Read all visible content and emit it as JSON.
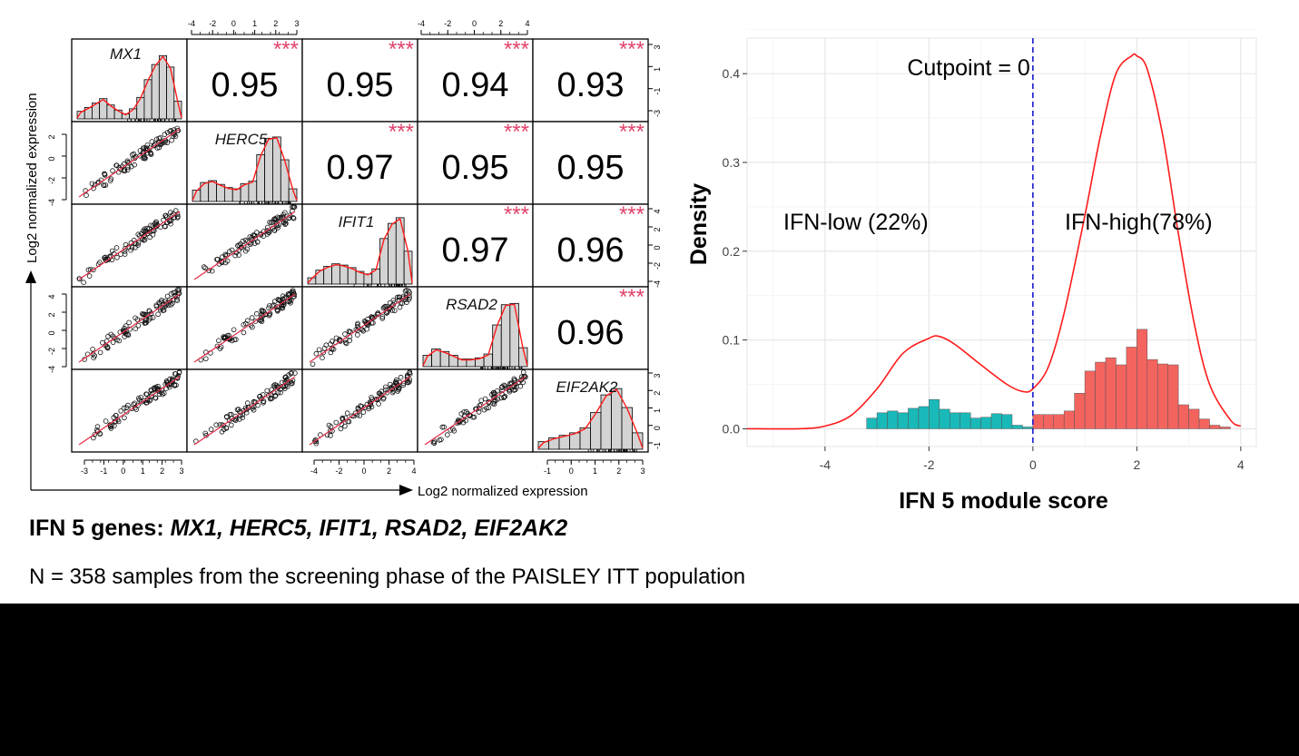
{
  "matrix": {
    "genes": [
      "MX1",
      "HERC5",
      "IFIT1",
      "RSAD2",
      "EIF2AK2"
    ],
    "correlations": [
      {
        "row": 0,
        "col": 1,
        "value": "0.95"
      },
      {
        "row": 0,
        "col": 2,
        "value": "0.95"
      },
      {
        "row": 0,
        "col": 3,
        "value": "0.94"
      },
      {
        "row": 0,
        "col": 4,
        "value": "0.93"
      },
      {
        "row": 1,
        "col": 2,
        "value": "0.97"
      },
      {
        "row": 1,
        "col": 3,
        "value": "0.95"
      },
      {
        "row": 1,
        "col": 4,
        "value": "0.95"
      },
      {
        "row": 2,
        "col": 3,
        "value": "0.97"
      },
      {
        "row": 2,
        "col": 4,
        "value": "0.96"
      },
      {
        "row": 3,
        "col": 4,
        "value": "0.96"
      }
    ],
    "significance": "***",
    "ylabel": "Log2 normalized expression",
    "xlabel": "Log2 normalized expression",
    "axes": {
      "top_col1": [
        "-4",
        "-2",
        "0",
        "1",
        "2",
        "3"
      ],
      "top_col3": [
        "-4",
        "-2",
        "0",
        "2",
        "4"
      ],
      "bottom_col0": [
        "-3",
        "-1",
        "0",
        "1",
        "2",
        "3"
      ],
      "bottom_col2": [
        "-4",
        "-2",
        "0",
        "2",
        "4"
      ],
      "bottom_col4": [
        "-1",
        "0",
        "1",
        "2",
        "3"
      ],
      "left_row1": [
        "2",
        "0",
        "-2",
        "-4"
      ],
      "left_row3": [
        "4",
        "2",
        "0",
        "-2",
        "-4"
      ],
      "right_row0": [
        "3",
        "1",
        "-1",
        "-3"
      ],
      "right_row2": [
        "4",
        "2",
        "0",
        "-2",
        "-4"
      ],
      "right_row4": [
        "3",
        "2",
        "1",
        "0",
        "-1"
      ]
    },
    "histograms": [
      [
        0.12,
        0.18,
        0.25,
        0.32,
        0.22,
        0.14,
        0.08,
        0.16,
        0.34,
        0.62,
        0.86,
        1.0,
        0.82,
        0.28
      ],
      [
        0.18,
        0.3,
        0.33,
        0.27,
        0.22,
        0.2,
        0.28,
        0.32,
        0.74,
        1.0,
        1.02,
        0.66,
        0.2
      ],
      [
        0.1,
        0.22,
        0.28,
        0.32,
        0.3,
        0.26,
        0.2,
        0.16,
        0.24,
        0.72,
        0.96,
        1.05,
        0.52
      ],
      [
        0.18,
        0.28,
        0.24,
        0.18,
        0.12,
        0.12,
        0.14,
        0.2,
        0.66,
        0.98,
        1.0,
        0.3
      ],
      [
        0.12,
        0.18,
        0.22,
        0.26,
        0.34,
        0.58,
        0.86,
        0.96,
        0.66,
        0.26
      ]
    ]
  },
  "chart_data": {
    "type": "area",
    "xlabel": "IFN 5 module score",
    "ylabel": "Density",
    "xlim": [
      -5.5,
      4.3
    ],
    "ylim": [
      -0.02,
      0.44
    ],
    "x_ticks": [
      -4,
      -2,
      0,
      2,
      4
    ],
    "y_ticks": [
      0.0,
      0.1,
      0.2,
      0.3,
      0.4
    ],
    "y_tick_labels": [
      "0.0",
      "0.1",
      "0.2",
      "0.3",
      "0.4"
    ],
    "x_tick_labels": [
      "-4",
      "-2",
      "0",
      "2",
      "4"
    ],
    "cutpoint": 0,
    "grid": true,
    "annotations": {
      "cutpoint": "Cutpoint = 0",
      "low": "IFN-low (22%)",
      "high": "IFN-high(78%)"
    },
    "density_curve": {
      "x": [
        -5.5,
        -4.5,
        -4.0,
        -3.5,
        -3.0,
        -2.5,
        -2.0,
        -1.8,
        -1.5,
        -1.0,
        -0.5,
        -0.2,
        0.0,
        0.3,
        0.6,
        1.0,
        1.3,
        1.6,
        1.9,
        2.0,
        2.2,
        2.5,
        2.8,
        3.1,
        3.4,
        3.8,
        4.0
      ],
      "y": [
        0.0,
        0.0,
        0.003,
        0.015,
        0.045,
        0.085,
        0.102,
        0.104,
        0.095,
        0.072,
        0.05,
        0.042,
        0.045,
        0.07,
        0.13,
        0.24,
        0.33,
        0.4,
        0.42,
        0.42,
        0.405,
        0.33,
        0.22,
        0.12,
        0.05,
        0.01,
        0.003
      ]
    },
    "series": [
      {
        "name": "IFN-low",
        "color": "#1ab9b9",
        "x": [
          -3.1,
          -2.9,
          -2.7,
          -2.5,
          -2.3,
          -2.1,
          -1.9,
          -1.7,
          -1.5,
          -1.3,
          -1.1,
          -0.9,
          -0.7,
          -0.5,
          -0.3,
          -0.1
        ],
        "y": [
          0.012,
          0.018,
          0.02,
          0.018,
          0.023,
          0.025,
          0.033,
          0.022,
          0.018,
          0.018,
          0.012,
          0.013,
          0.017,
          0.016,
          0.004,
          0.002
        ]
      },
      {
        "name": "IFN-high",
        "color": "#f4645f",
        "x": [
          0.1,
          0.3,
          0.5,
          0.7,
          0.9,
          1.1,
          1.3,
          1.5,
          1.7,
          1.9,
          2.1,
          2.3,
          2.5,
          2.7,
          2.9,
          3.1,
          3.3,
          3.5,
          3.7
        ],
        "y": [
          0.016,
          0.016,
          0.016,
          0.02,
          0.04,
          0.065,
          0.075,
          0.08,
          0.072,
          0.092,
          0.112,
          0.078,
          0.073,
          0.072,
          0.027,
          0.022,
          0.011,
          0.004,
          0.002
        ]
      }
    ]
  },
  "captions": {
    "line1_prefix": "IFN 5 genes: ",
    "line1_genes": "MX1, HERC5, IFIT1, RSAD2, EIF2AK2",
    "line2": "N = 358 samples from the screening phase of the PAISLEY ITT population"
  },
  "colors": {
    "stars": "#e0436b",
    "density_line": "#ff1a1a",
    "cutpoint_line": "#1a1acc",
    "fit_line": "#e6324b"
  }
}
